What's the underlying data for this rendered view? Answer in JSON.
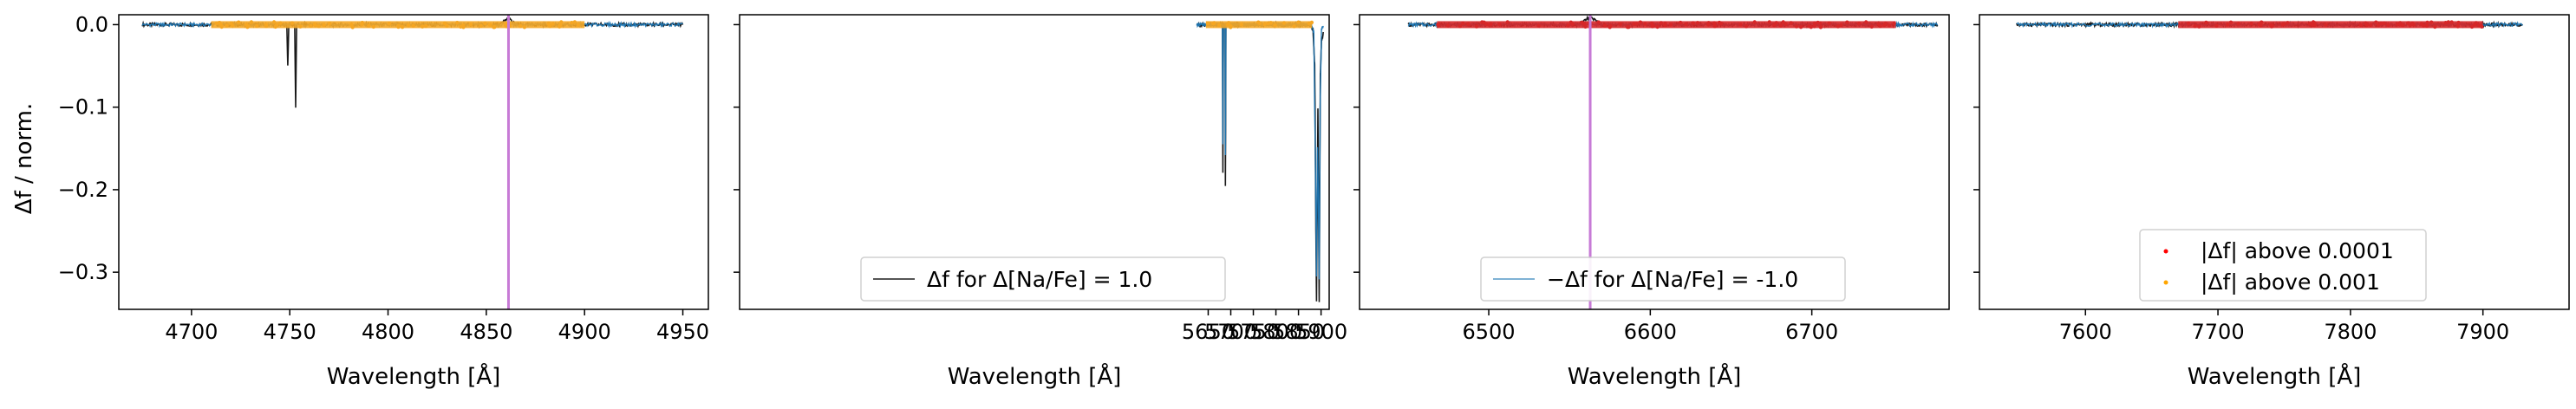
{
  "chart_data": [
    {
      "type": "line",
      "panel": 1,
      "xlabel": "Wavelength [Å]",
      "ylabel": "Δf / norm.",
      "xlim": [
        4663,
        4963
      ],
      "ylim": [
        -0.345,
        0.012
      ],
      "xticks": [
        4700,
        4750,
        4800,
        4850,
        4900,
        4950
      ],
      "yticks": [
        0.0,
        -0.1,
        -0.2,
        -0.3
      ],
      "ytick_labels": [
        "0.0",
        "−0.1",
        "−0.2",
        "−0.3"
      ],
      "range": [
        4675,
        4950
      ],
      "marked_ranges": [
        [
          4710,
          4900
        ]
      ],
      "marked_color": "#f5a623",
      "vline": 4861.3,
      "vline_color": "#c77ad6",
      "series": [
        {
          "style": "black",
          "color": "#000000",
          "points": [
            [
              4675,
              0
            ],
            [
              4748.5,
              0
            ],
            [
              4749,
              -0.05
            ],
            [
              4749.5,
              0
            ],
            [
              4752.5,
              0
            ],
            [
              4753,
              -0.1
            ],
            [
              4753.5,
              0
            ],
            [
              4857,
              0
            ],
            [
              4861,
              0.008
            ],
            [
              4865,
              0
            ],
            [
              4950,
              0
            ]
          ]
        },
        {
          "style": "blue",
          "color": "#1f77b4",
          "points": [
            [
              4675,
              0
            ],
            [
              4950,
              0
            ]
          ]
        }
      ]
    },
    {
      "type": "line",
      "panel": 2,
      "xlabel": "Wavelength [Å]",
      "xlim": [
        4612,
        5918
      ],
      "ylim": [
        -0.345,
        0.012
      ],
      "xticks": [
        5650,
        5700,
        5750,
        5800,
        5850,
        5900
      ],
      "range": [
        5625,
        5905
      ],
      "marked_ranges": [
        [
          5645,
          5880
        ]
      ],
      "marked_color": "#f5a623",
      "legend": {
        "label": "Δf for Δ[Na/Fe] = 1.0",
        "color": "#555555",
        "position": "lower center"
      },
      "series": [
        {
          "style": "black",
          "color": "#000000",
          "points": [
            [
              5625,
              0
            ],
            [
              5681.5,
              0
            ],
            [
              5682.6,
              -0.18
            ],
            [
              5683.8,
              0
            ],
            [
              5687.5,
              0
            ],
            [
              5688.2,
              -0.195
            ],
            [
              5689.2,
              0
            ],
            [
              5875,
              0
            ],
            [
              5882,
              -0.005
            ],
            [
              5886,
              -0.05
            ],
            [
              5888.5,
              -0.25
            ],
            [
              5889.95,
              -0.335
            ],
            [
              5891.2,
              -0.25
            ],
            [
              5893,
              -0.1
            ],
            [
              5894.5,
              -0.22
            ],
            [
              5895.9,
              -0.335
            ],
            [
              5897,
              -0.2
            ],
            [
              5898.5,
              -0.06
            ],
            [
              5901,
              -0.02
            ],
            [
              5905,
              -0.01
            ]
          ]
        },
        {
          "style": "blue",
          "color": "#1f77b4",
          "points": [
            [
              5625,
              0
            ],
            [
              5681.5,
              0
            ],
            [
              5682.6,
              -0.145
            ],
            [
              5683.8,
              0
            ],
            [
              5687.5,
              0
            ],
            [
              5688.2,
              -0.16
            ],
            [
              5689.2,
              0
            ],
            [
              5878,
              0
            ],
            [
              5884,
              -0.01
            ],
            [
              5888,
              -0.2
            ],
            [
              5889.95,
              -0.305
            ],
            [
              5892,
              -0.15
            ],
            [
              5893.8,
              -0.2
            ],
            [
              5895.9,
              -0.31
            ],
            [
              5898,
              -0.1
            ],
            [
              5901,
              -0.005
            ],
            [
              5905,
              -0.002
            ]
          ]
        }
      ]
    },
    {
      "type": "line",
      "panel": 3,
      "xlabel": "Wavelength [Å]",
      "xlim": [
        6420,
        6785
      ],
      "ylim": [
        -0.345,
        0.012
      ],
      "xticks": [
        6500,
        6600,
        6700
      ],
      "range": [
        6450,
        6778
      ],
      "marked_ranges": [
        [
          6468,
          6752
        ]
      ],
      "marked_color": "#d62728",
      "vline": 6562.8,
      "vline_color": "#c77ad6",
      "legend": {
        "label": "−Δf for Δ[Na/Fe] = -1.0",
        "color": "#7fb2d5",
        "position": "lower center"
      },
      "series": [
        {
          "style": "black",
          "color": "#000000",
          "points": [
            [
              6450,
              0
            ],
            [
              6555,
              0
            ],
            [
              6562.8,
              0.009
            ],
            [
              6570,
              0
            ],
            [
              6778,
              0
            ]
          ]
        },
        {
          "style": "blue",
          "color": "#1f77b4",
          "points": [
            [
              6450,
              0
            ],
            [
              6778,
              0
            ]
          ]
        }
      ]
    },
    {
      "type": "line",
      "panel": 4,
      "xlabel": "Wavelength [Å]",
      "xlim": [
        7520,
        7965
      ],
      "ylim": [
        -0.345,
        0.012
      ],
      "xticks": [
        7600,
        7700,
        7800,
        7900
      ],
      "range": [
        7548,
        7930
      ],
      "marked_ranges": [
        [
          7670,
          7900
        ]
      ],
      "marked_color": "#d62728",
      "legend": {
        "position": "lower center",
        "entries": [
          {
            "label": "|Δf| above 0.0001",
            "marker_color": "#ff0000"
          },
          {
            "label": "|Δf| above 0.001",
            "marker_color": "#ffa500"
          }
        ]
      },
      "series": [
        {
          "style": "black",
          "color": "#000000",
          "points": [
            [
              7548,
              0
            ],
            [
              7930,
              0
            ]
          ]
        },
        {
          "style": "blue",
          "color": "#1f77b4",
          "points": [
            [
              7548,
              0
            ],
            [
              7930,
              0
            ]
          ]
        }
      ]
    }
  ]
}
